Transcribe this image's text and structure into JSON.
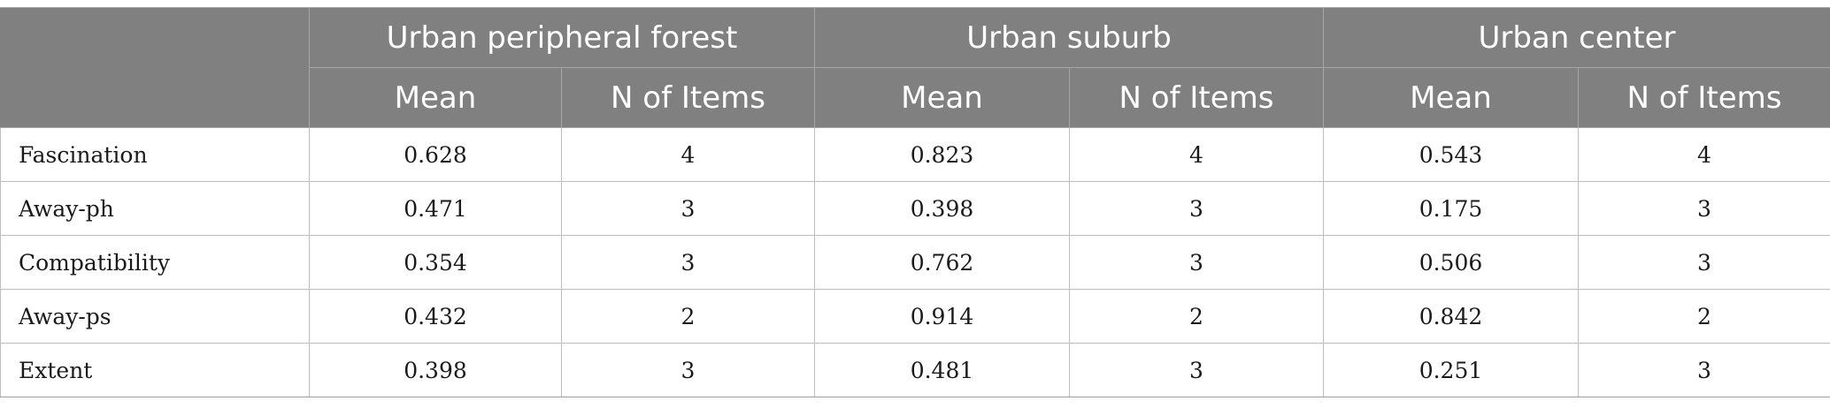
{
  "groups": [
    {
      "name": "Urban peripheral forest"
    },
    {
      "name": "Urban suburb"
    },
    {
      "name": "Urban center"
    }
  ],
  "subheaders": {
    "mean": "Mean",
    "items": "N of Items"
  },
  "rows": [
    {
      "label": "Fascination",
      "cells": [
        "0.628",
        "4",
        "0.823",
        "4",
        "0.543",
        "4"
      ]
    },
    {
      "label": "Away-ph",
      "cells": [
        "0.471",
        "3",
        "0.398",
        "3",
        "0.175",
        "3"
      ]
    },
    {
      "label": "Compatibility",
      "cells": [
        "0.354",
        "3",
        "0.762",
        "3",
        "0.506",
        "3"
      ]
    },
    {
      "label": "Away-ps",
      "cells": [
        "0.432",
        "2",
        "0.914",
        "2",
        "0.842",
        "2"
      ]
    },
    {
      "label": "Extent",
      "cells": [
        "0.398",
        "3",
        "0.481",
        "3",
        "0.251",
        "3"
      ]
    }
  ],
  "colors": {
    "header_bg": "#808080",
    "header_text": "#ffffff",
    "grid": "#bdbdbd"
  }
}
